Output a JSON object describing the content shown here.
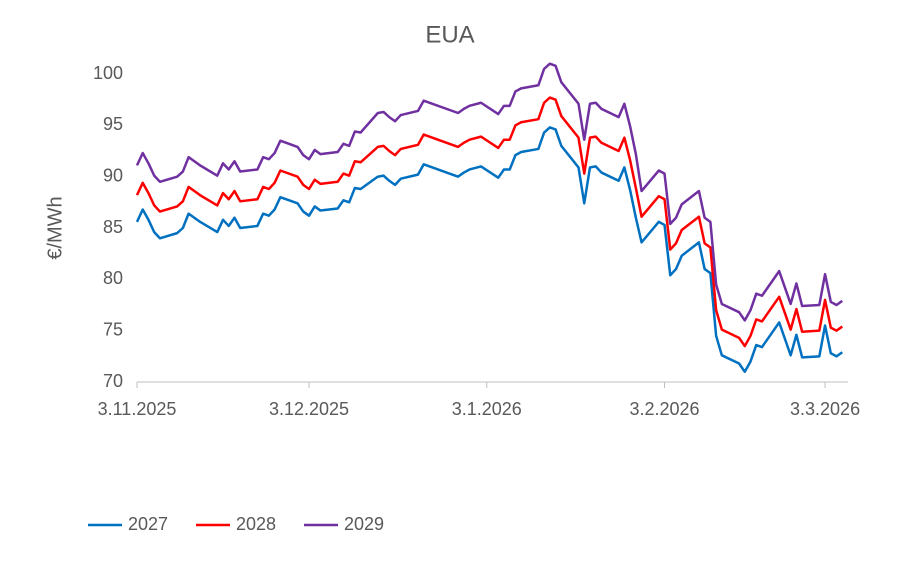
{
  "chart_data": {
    "type": "line",
    "title": "EUA",
    "y_label": "€/MWh",
    "x": [
      "2025-11-03",
      "2025-11-04",
      "2025-11-05",
      "2025-11-06",
      "2025-11-07",
      "2025-11-10",
      "2025-11-11",
      "2025-11-12",
      "2025-11-13",
      "2025-11-14",
      "2025-11-17",
      "2025-11-18",
      "2025-11-19",
      "2025-11-20",
      "2025-11-21",
      "2025-11-24",
      "2025-11-25",
      "2025-11-26",
      "2025-11-27",
      "2025-11-28",
      "2025-12-01",
      "2025-12-02",
      "2025-12-03",
      "2025-12-04",
      "2025-12-05",
      "2025-12-08",
      "2025-12-09",
      "2025-12-10",
      "2025-12-11",
      "2025-12-12",
      "2025-12-15",
      "2025-12-16",
      "2025-12-17",
      "2025-12-18",
      "2025-12-19",
      "2025-12-22",
      "2025-12-23",
      "2025-12-29",
      "2025-12-30",
      "2025-12-31",
      "2026-01-02",
      "2026-01-05",
      "2026-01-06",
      "2026-01-07",
      "2026-01-08",
      "2026-01-09",
      "2026-01-12",
      "2026-01-13",
      "2026-01-14",
      "2026-01-15",
      "2026-01-16",
      "2026-01-19",
      "2026-01-20",
      "2026-01-21",
      "2026-01-22",
      "2026-01-23",
      "2026-01-26",
      "2026-01-27",
      "2026-01-28",
      "2026-01-29",
      "2026-01-30",
      "2026-02-02",
      "2026-02-03",
      "2026-02-04",
      "2026-02-05",
      "2026-02-06",
      "2026-02-09",
      "2026-02-10",
      "2026-02-11",
      "2026-02-12",
      "2026-02-13",
      "2026-02-16",
      "2026-02-17",
      "2026-02-18",
      "2026-02-19",
      "2026-02-20",
      "2026-02-23",
      "2026-02-24",
      "2026-02-25",
      "2026-02-26",
      "2026-02-27",
      "2026-03-02",
      "2026-03-03",
      "2026-03-04",
      "2026-03-05",
      "2026-03-06"
    ],
    "series": [
      {
        "name": "2027",
        "color": "#0070c0",
        "values": [
          85.6,
          86.8,
          85.8,
          84.6,
          84.0,
          84.5,
          85.0,
          86.4,
          86.0,
          85.6,
          84.6,
          85.8,
          85.2,
          86.0,
          85.0,
          85.2,
          86.4,
          86.2,
          86.8,
          88.0,
          87.4,
          86.6,
          86.2,
          87.1,
          86.7,
          86.9,
          87.7,
          87.5,
          88.9,
          88.8,
          90.0,
          90.1,
          89.6,
          89.2,
          89.8,
          90.2,
          91.2,
          90.0,
          90.4,
          90.7,
          91.0,
          89.9,
          90.7,
          90.7,
          92.1,
          92.4,
          92.7,
          94.3,
          94.8,
          94.6,
          93.0,
          90.9,
          87.4,
          90.9,
          91.0,
          90.4,
          89.6,
          90.9,
          88.7,
          86.0,
          83.6,
          85.6,
          85.3,
          80.4,
          81.0,
          82.3,
          83.6,
          81.0,
          80.6,
          74.5,
          72.6,
          71.8,
          71.0,
          72.0,
          73.6,
          73.4,
          75.8,
          74.2,
          72.6,
          74.6,
          72.4,
          72.5,
          75.5,
          72.8,
          72.5,
          72.9
        ]
      },
      {
        "name": "2028",
        "color": "#ff0000",
        "values": [
          88.2,
          89.4,
          88.4,
          87.2,
          86.6,
          87.1,
          87.6,
          89.0,
          88.6,
          88.2,
          87.2,
          88.4,
          87.8,
          88.6,
          87.6,
          87.8,
          89.0,
          88.8,
          89.4,
          90.6,
          90.0,
          89.2,
          88.8,
          89.7,
          89.3,
          89.5,
          90.3,
          90.1,
          91.5,
          91.4,
          92.9,
          93.0,
          92.5,
          92.1,
          92.7,
          93.1,
          94.1,
          92.9,
          93.3,
          93.6,
          93.9,
          92.8,
          93.6,
          93.6,
          95.0,
          95.3,
          95.6,
          97.2,
          97.7,
          97.5,
          95.9,
          93.8,
          90.3,
          93.8,
          93.9,
          93.3,
          92.5,
          93.8,
          91.6,
          88.9,
          86.1,
          88.1,
          87.8,
          82.9,
          83.5,
          84.8,
          86.1,
          83.5,
          83.1,
          77.0,
          75.1,
          74.3,
          73.5,
          74.5,
          76.1,
          75.9,
          78.3,
          76.7,
          75.1,
          77.1,
          74.9,
          75.0,
          78.0,
          75.3,
          75.0,
          75.4
        ]
      },
      {
        "name": "2029",
        "color": "#7030a0",
        "values": [
          91.1,
          92.3,
          91.3,
          90.1,
          89.5,
          90.0,
          90.5,
          91.9,
          91.5,
          91.1,
          90.1,
          91.3,
          90.7,
          91.5,
          90.5,
          90.7,
          91.9,
          91.7,
          92.3,
          93.5,
          92.9,
          92.1,
          91.7,
          92.6,
          92.2,
          92.4,
          93.2,
          93.0,
          94.4,
          94.3,
          96.2,
          96.3,
          95.8,
          95.4,
          96.0,
          96.4,
          97.4,
          96.2,
          96.6,
          96.9,
          97.2,
          96.1,
          96.9,
          96.9,
          98.3,
          98.6,
          98.9,
          100.5,
          101.0,
          100.8,
          99.2,
          97.1,
          93.6,
          97.1,
          97.2,
          96.6,
          95.8,
          97.1,
          94.9,
          92.2,
          88.6,
          90.6,
          90.3,
          85.4,
          86.0,
          87.3,
          88.6,
          86.0,
          85.6,
          79.5,
          77.6,
          76.8,
          76.0,
          77.0,
          78.6,
          78.4,
          80.8,
          79.2,
          77.6,
          79.6,
          77.4,
          77.5,
          80.5,
          77.8,
          77.5,
          77.9
        ]
      }
    ],
    "xlim": [
      "2025-11-03",
      "2026-03-07"
    ],
    "xticks": [
      {
        "value": "2025-11-03",
        "label": "3.11.2025"
      },
      {
        "value": "2025-12-03",
        "label": "3.12.2025"
      },
      {
        "value": "2026-01-03",
        "label": "3.1.2026"
      },
      {
        "value": "2026-02-03",
        "label": "3.2.2026"
      },
      {
        "value": "2026-03-03",
        "label": "3.3.2026"
      }
    ],
    "ylim": [
      70,
      100
    ],
    "yticks": [
      70,
      75,
      80,
      85,
      90,
      95,
      100
    ],
    "grid": false,
    "legend": "bottom-left"
  }
}
